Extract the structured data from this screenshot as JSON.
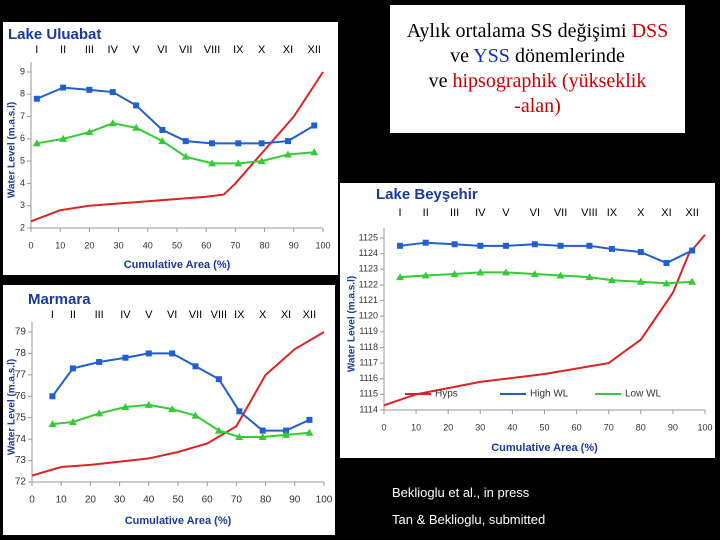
{
  "slide": {
    "title_parts": [
      {
        "text": "Aylık ortalama SS değişimi",
        "color": "#000000"
      },
      {
        "text": "DSS",
        "color": "#cc0000"
      },
      {
        "text": "ve",
        "color": "#000000"
      },
      {
        "text": "YSS",
        "color": "#1030c0"
      },
      {
        "text": "dönemlerinde",
        "color": "#000000"
      },
      {
        "text": "ve",
        "color": "#000000"
      },
      {
        "text": "hipsographik (yükseklik",
        "color": "#cc0000"
      },
      {
        "text": "-alan)",
        "color": "#cc0000"
      }
    ],
    "citations": [
      "Beklioglu et al., in press",
      "Tan & Beklioglu, submitted"
    ]
  },
  "chart_data": [
    {
      "type": "line",
      "title": "Lake Uluabat",
      "xlabel": "Cumulative Area (%)",
      "ylabel": "Water Level (m.a.s.l)",
      "months": [
        "I",
        "II",
        "III",
        "IV",
        "V",
        "VI",
        "VII",
        "VIII",
        "IX",
        "X",
        "XI",
        "XII"
      ],
      "xlim": [
        0,
        100
      ],
      "xticks": [
        0,
        10,
        20,
        30,
        40,
        50,
        60,
        70,
        80,
        90,
        100
      ],
      "ylim": [
        2,
        9
      ],
      "yticks": [
        2,
        3,
        4,
        5,
        6,
        7,
        8,
        9
      ],
      "series": [
        {
          "color": "#dd2222",
          "marker": "none",
          "x": [
            0,
            10,
            20,
            40,
            60,
            66,
            70,
            80,
            90,
            100
          ],
          "values": [
            2.3,
            2.8,
            3.0,
            3.2,
            3.4,
            3.5,
            4.0,
            5.5,
            7.0,
            9.0
          ]
        },
        {
          "color": "#1f5fd0",
          "marker": "square",
          "x": [
            2,
            11,
            20,
            28,
            36,
            45,
            53,
            62,
            71,
            79,
            88,
            97
          ],
          "values": [
            7.8,
            8.3,
            8.2,
            8.1,
            7.5,
            6.4,
            5.9,
            5.8,
            5.8,
            5.8,
            5.9,
            6.6
          ]
        },
        {
          "color": "#33cc33",
          "marker": "triangle",
          "x": [
            2,
            11,
            20,
            28,
            36,
            45,
            53,
            62,
            71,
            79,
            88,
            97
          ],
          "values": [
            5.8,
            6.0,
            6.3,
            6.7,
            6.5,
            5.9,
            5.2,
            4.9,
            4.9,
            5.0,
            5.3,
            5.4
          ]
        }
      ]
    },
    {
      "type": "line",
      "title": "Lake Beyşehir",
      "xlabel": "Cumulative Area (%)",
      "ylabel": "Water Level (m.a.s.l)",
      "legend": "lower right",
      "months": [
        "I",
        "II",
        "III",
        "IV",
        "V",
        "VI",
        "VII",
        "VIII",
        "IX",
        "X",
        "XI",
        "XII"
      ],
      "xlim": [
        0,
        100
      ],
      "xticks": [
        0,
        10,
        20,
        30,
        40,
        50,
        60,
        70,
        80,
        90,
        100
      ],
      "ylim": [
        1114,
        1125
      ],
      "yticks": [
        1114,
        1115,
        1116,
        1117,
        1118,
        1119,
        1120,
        1121,
        1122,
        1123,
        1124,
        1125
      ],
      "series": [
        {
          "name": "Hyps",
          "color": "#dd2222",
          "marker": "none",
          "x": [
            0,
            10,
            30,
            50,
            70,
            80,
            90,
            95,
            100
          ],
          "values": [
            1114.3,
            1115,
            1115.8,
            1116.3,
            1117,
            1118.5,
            1121.5,
            1124,
            1125.2
          ]
        },
        {
          "name": "High WL",
          "color": "#1f5fd0",
          "marker": "square",
          "x": [
            5,
            13,
            22,
            30,
            38,
            47,
            55,
            64,
            71,
            80,
            88,
            96
          ],
          "values": [
            1124.5,
            1124.7,
            1124.6,
            1124.5,
            1124.5,
            1124.6,
            1124.5,
            1124.5,
            1124.3,
            1124.1,
            1123.4,
            1124.2
          ]
        },
        {
          "name": "Low WL",
          "color": "#33cc33",
          "marker": "triangle",
          "x": [
            5,
            13,
            22,
            30,
            38,
            47,
            55,
            64,
            71,
            80,
            88,
            96
          ],
          "values": [
            1122.5,
            1122.6,
            1122.7,
            1122.8,
            1122.8,
            1122.7,
            1122.6,
            1122.5,
            1122.3,
            1122.2,
            1122.1,
            1122.2
          ]
        }
      ]
    },
    {
      "type": "line",
      "title": "Marmara",
      "xlabel": "Cumulative Area (%)",
      "ylabel": "Water Level (m.a.s.l)",
      "months": [
        "I",
        "II",
        "III",
        "IV",
        "V",
        "VI",
        "VII",
        "VIII",
        "IX",
        "X",
        "XI",
        "XII"
      ],
      "xlim": [
        0,
        100
      ],
      "xticks": [
        0,
        10,
        20,
        30,
        40,
        50,
        60,
        70,
        80,
        90,
        100
      ],
      "ylim": [
        72,
        79
      ],
      "yticks": [
        72,
        73,
        74,
        75,
        76,
        77,
        78,
        79
      ],
      "series": [
        {
          "color": "#dd2222",
          "marker": "none",
          "x": [
            0,
            10,
            20,
            40,
            50,
            60,
            70,
            80,
            90,
            100
          ],
          "values": [
            72.3,
            72.7,
            72.8,
            73.1,
            73.4,
            73.8,
            74.6,
            77.0,
            78.2,
            79.0
          ]
        },
        {
          "color": "#1f5fd0",
          "marker": "square",
          "x": [
            7,
            14,
            23,
            32,
            40,
            48,
            56,
            64,
            71,
            79,
            87,
            95
          ],
          "values": [
            76.0,
            77.3,
            77.6,
            77.8,
            78.0,
            78.0,
            77.4,
            76.8,
            75.3,
            74.4,
            74.4,
            74.9
          ]
        },
        {
          "color": "#33cc33",
          "marker": "triangle",
          "x": [
            7,
            14,
            23,
            32,
            40,
            48,
            56,
            64,
            71,
            79,
            87,
            95
          ],
          "values": [
            74.7,
            74.8,
            75.2,
            75.5,
            75.6,
            75.4,
            75.1,
            74.4,
            74.1,
            74.1,
            74.2,
            74.3
          ]
        }
      ]
    }
  ]
}
